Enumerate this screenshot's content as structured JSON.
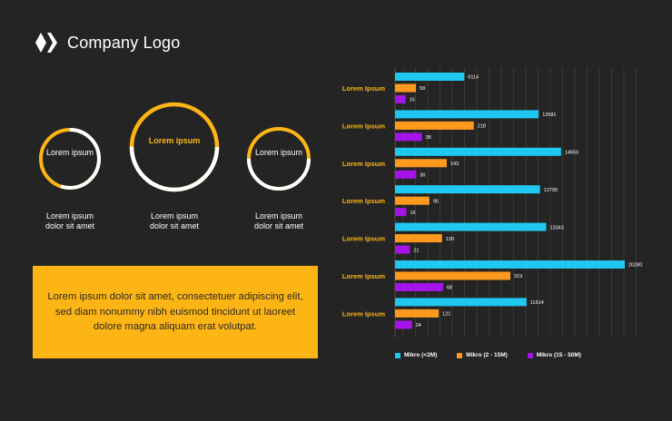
{
  "brand": {
    "name": "Company Logo"
  },
  "colors": {
    "background": "#242424",
    "accent": "#FDB515",
    "cyan": "#1EC8F0",
    "orange": "#FF9A1F",
    "purple": "#A414E8",
    "white": "#FFFFFF"
  },
  "rings": [
    {
      "label": "Lorem ipsum",
      "caption": "Lorem ipsum dolor sit amet",
      "fill_fraction": 0.55,
      "track_color": "#FDB515",
      "arc_color": "#FFFFFF",
      "label_color": "#FFFFFF"
    },
    {
      "label": "Lorem ipsum",
      "caption": "Lorem ipsum dolor sit amet",
      "fill_fraction": 0.5,
      "track_color": "#FDB515",
      "arc_color": "#FFFFFF",
      "label_color": "#FDB515"
    },
    {
      "label": "Lorem ipsum",
      "caption": "Lorem ipsum dolor sit amet",
      "fill_fraction": 0.5,
      "track_color": "#FDB515",
      "arc_color": "#FFFFFF",
      "label_color": "#FFFFFF"
    }
  ],
  "info_box": {
    "text": "Lorem ipsum dolor sit amet, consectetuer adipiscing elit, sed diam nonummy nibh euismod tincidunt ut laoreet dolore magna aliquam erat volutpat."
  },
  "chart_data": {
    "type": "bar",
    "orientation": "horizontal",
    "categories": [
      "Lorem Ipsum",
      "Lorem Ipsum",
      "Lorem Ipsum",
      "Lorem Ipsum",
      "Lorem Ipsum",
      "Lorem Ipsum",
      "Lorem Ipsum"
    ],
    "series": [
      {
        "name": "Mikro (<2M)",
        "color": "#1EC8F0",
        "values": [
          6114,
          12681,
          14656,
          12799,
          13343,
          20280,
          11614
        ]
      },
      {
        "name": "Mikro (2 - 15M)",
        "color": "#FF9A1F",
        "values": [
          58,
          218,
          143,
          95,
          130,
          319,
          121
        ]
      },
      {
        "name": "Mikro (15 - 50M)",
        "color": "#A414E8",
        "values": [
          15,
          38,
          30,
          16,
          21,
          68,
          24
        ]
      }
    ],
    "legend_position": "bottom",
    "grid": true
  }
}
